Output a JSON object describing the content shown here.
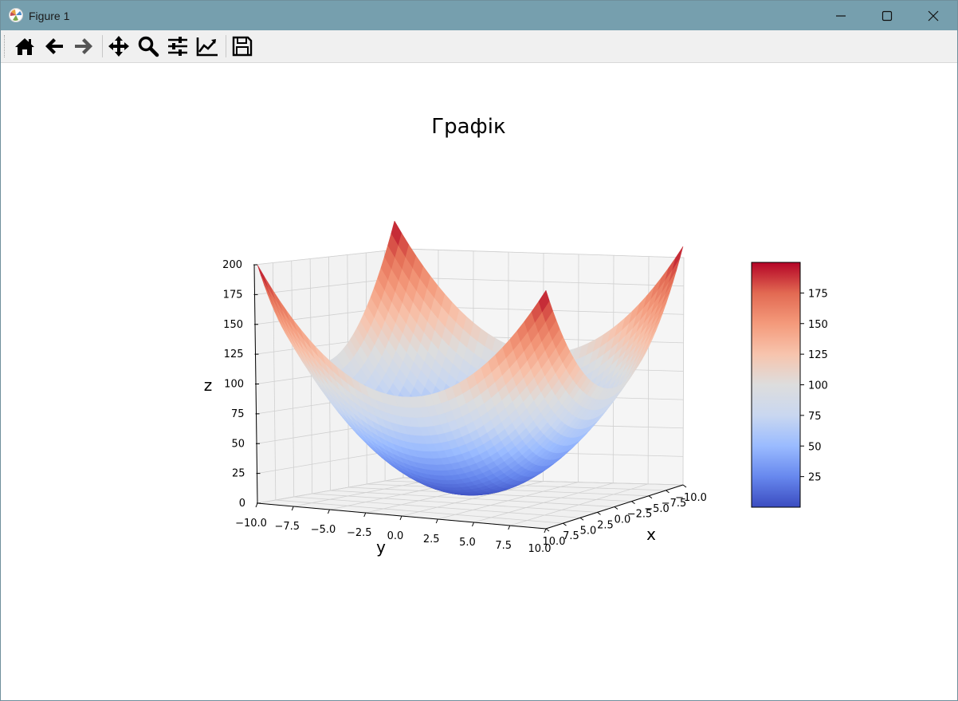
{
  "window": {
    "title": "Figure 1"
  },
  "toolbar": {
    "items": [
      {
        "name": "home",
        "icon": "home-icon"
      },
      {
        "name": "back",
        "icon": "arrow-left-icon"
      },
      {
        "name": "forward",
        "icon": "arrow-right-icon"
      },
      {
        "name": "pan",
        "icon": "move-icon"
      },
      {
        "name": "zoom",
        "icon": "magnifier-icon"
      },
      {
        "name": "subplots",
        "icon": "sliders-icon"
      },
      {
        "name": "edit-axis",
        "icon": "chart-line-icon"
      },
      {
        "name": "save",
        "icon": "floppy-disk-icon"
      }
    ]
  },
  "chart_data": {
    "type": "surface",
    "title": "Графік",
    "function": "z = x^2 + y^2",
    "x_range": [
      -10,
      10
    ],
    "y_range": [
      -10,
      10
    ],
    "xlabel": "x",
    "ylabel": "y",
    "zlabel": "z",
    "z_ticks": [
      "0",
      "25",
      "50",
      "75",
      "100",
      "125",
      "150",
      "175",
      "200"
    ],
    "y_ticks": [
      "−10.0",
      "−7.5",
      "−5.0",
      "−2.5",
      "0.0",
      "2.5",
      "5.0",
      "7.5",
      "10.0"
    ],
    "x_ticks": [
      "10.0",
      "7.5",
      "5.0",
      "2.5",
      "0.0",
      "−2.5",
      "−5.0",
      "−7.5",
      "−10.0"
    ],
    "colormap": "coolwarm",
    "colormap_stops": [
      "#3b4cc0",
      "#6788ee",
      "#9abbff",
      "#c9d7f0",
      "#dddddd",
      "#f7c4ad",
      "#f49a7b",
      "#e26952",
      "#b40426"
    ],
    "colorbar": {
      "range": [
        0,
        200
      ],
      "ticks": [
        "25",
        "50",
        "75",
        "100",
        "125",
        "150",
        "175"
      ]
    },
    "grid": true
  }
}
